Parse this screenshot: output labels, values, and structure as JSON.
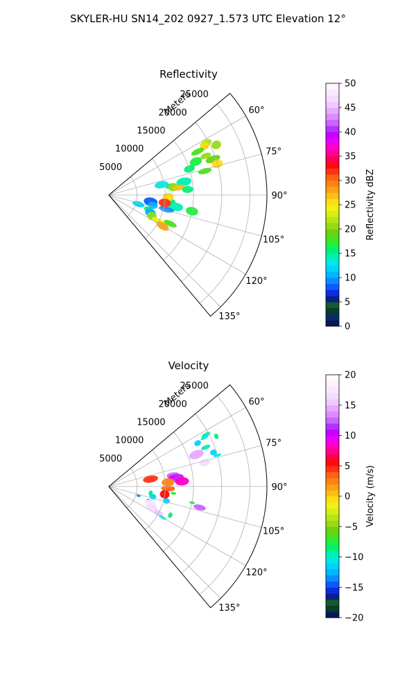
{
  "figure_title": "SKYLER-HU  SN14_202  0927_1.573 UTC Elevation 12°",
  "chart_data": [
    {
      "type": "polar-sector",
      "title": "Reflectivity",
      "radial_axis_label": "Meters",
      "radial_ticks": [
        "5000",
        "10000",
        "15000",
        "20000",
        "25000"
      ],
      "radial_tick_values": [
        5000,
        10000,
        15000,
        20000,
        25000
      ],
      "rlim": [
        0,
        28000
      ],
      "theta_range_deg": [
        50,
        140
      ],
      "angle_ticks": [
        "60°",
        "75°",
        "90°",
        "105°",
        "120°",
        "135°"
      ],
      "angle_tick_values": [
        60,
        75,
        90,
        105,
        120,
        135
      ],
      "grid": true,
      "colorbar": {
        "label": "Reflectivity dBZ",
        "range": [
          0,
          50
        ],
        "ticks": [
          "0",
          "5",
          "10",
          "15",
          "20",
          "25",
          "30",
          "35",
          "40",
          "45",
          "50"
        ],
        "tick_values": [
          0,
          5,
          10,
          15,
          20,
          25,
          30,
          35,
          40,
          45,
          50
        ],
        "colors": [
          "#061a55",
          "#0a2c66",
          "#0b3d2b",
          "#145a2c",
          "#0a1e8c",
          "#0b2ee0",
          "#0a5cff",
          "#0a8cff",
          "#00b4ff",
          "#00d2ff",
          "#00e8e8",
          "#00f0b4",
          "#00f078",
          "#1ef03c",
          "#4be01e",
          "#6ed214",
          "#96dc14",
          "#b4e614",
          "#d2f014",
          "#f0f014",
          "#ffdc14",
          "#ffbe14",
          "#ffa014",
          "#ff8214",
          "#ff6414",
          "#ff3214",
          "#ff0a0a",
          "#ff0050",
          "#ff0096",
          "#ff00c8",
          "#e600ff",
          "#c800ff",
          "#b432ff",
          "#c864ff",
          "#dc8cff",
          "#e6aaff",
          "#f0c8ff",
          "#f5dcff",
          "#fae8ff",
          "#fff4ff"
        ]
      },
      "echoes": [
        {
          "theta": 62,
          "r": 19500,
          "value": 22
        },
        {
          "theta": 63,
          "r": 19000,
          "value": 25
        },
        {
          "theta": 65,
          "r": 21000,
          "value": 20
        },
        {
          "theta": 64,
          "r": 17500,
          "value": 18
        },
        {
          "theta": 68,
          "r": 18500,
          "value": 21
        },
        {
          "theta": 69,
          "r": 16500,
          "value": 17
        },
        {
          "theta": 71,
          "r": 19500,
          "value": 19
        },
        {
          "theta": 72,
          "r": 15000,
          "value": 16
        },
        {
          "theta": 74,
          "r": 20000,
          "value": 26
        },
        {
          "theta": 76,
          "r": 17500,
          "value": 18
        },
        {
          "theta": 80,
          "r": 13500,
          "value": 14
        },
        {
          "theta": 82,
          "r": 11000,
          "value": 15
        },
        {
          "theta": 83,
          "r": 11500,
          "value": 20
        },
        {
          "theta": 84,
          "r": 12500,
          "value": 27
        },
        {
          "theta": 79,
          "r": 9500,
          "value": 13
        },
        {
          "theta": 86,
          "r": 14000,
          "value": 16
        },
        {
          "theta": 99,
          "r": 7500,
          "value": 8
        },
        {
          "theta": 103,
          "r": 8000,
          "value": 10
        },
        {
          "theta": 107,
          "r": 5500,
          "value": 12
        },
        {
          "theta": 110,
          "r": 7500,
          "value": 15
        },
        {
          "theta": 113,
          "r": 8000,
          "value": 11
        },
        {
          "theta": 116,
          "r": 8500,
          "value": 20
        },
        {
          "theta": 118,
          "r": 10000,
          "value": 24
        },
        {
          "theta": 120,
          "r": 11000,
          "value": 28
        },
        {
          "theta": 115,
          "r": 12000,
          "value": 18
        },
        {
          "theta": 96,
          "r": 11000,
          "value": 15
        },
        {
          "theta": 100,
          "r": 12000,
          "value": 14
        },
        {
          "theta": 104,
          "r": 10500,
          "value": 9
        },
        {
          "theta": 92,
          "r": 10500,
          "value": 26
        },
        {
          "theta": 98,
          "r": 10000,
          "value": 32
        },
        {
          "theta": 101,
          "r": 15000,
          "value": 17
        }
      ]
    },
    {
      "type": "polar-sector",
      "title": "Velocity",
      "radial_axis_label": "Meters",
      "radial_ticks": [
        "5000",
        "10000",
        "15000",
        "20000",
        "25000"
      ],
      "radial_tick_values": [
        5000,
        10000,
        15000,
        20000,
        25000
      ],
      "rlim": [
        0,
        28000
      ],
      "theta_range_deg": [
        50,
        140
      ],
      "angle_ticks": [
        "60°",
        "75°",
        "90°",
        "105°",
        "120°",
        "135°"
      ],
      "angle_tick_values": [
        60,
        75,
        90,
        105,
        120,
        135
      ],
      "grid": true,
      "colorbar": {
        "label": "Velocity (m/s)",
        "range": [
          -20,
          20
        ],
        "ticks": [
          "−20",
          "−15",
          "−10",
          "−5",
          "0",
          "5",
          "10",
          "15",
          "20"
        ],
        "tick_values": [
          -20,
          -15,
          -10,
          -5,
          0,
          5,
          10,
          15,
          20
        ],
        "colors": [
          "#061a55",
          "#0b3d2b",
          "#145a2c",
          "#0a1e8c",
          "#0b2ee0",
          "#0a5cff",
          "#0a8cff",
          "#00b4ff",
          "#00d2ff",
          "#00e8e8",
          "#00f0b4",
          "#00f078",
          "#1ef03c",
          "#4be01e",
          "#6ed214",
          "#96dc14",
          "#b4e614",
          "#d2f014",
          "#f0f014",
          "#ffdc14",
          "#ffbe14",
          "#ffa014",
          "#ff8214",
          "#ff6414",
          "#ff3214",
          "#ff0a0a",
          "#ff0050",
          "#ff0096",
          "#ff00c8",
          "#e600ff",
          "#c800ff",
          "#b432ff",
          "#c864ff",
          "#dc8cff",
          "#e6aaff",
          "#f0c8ff",
          "#f5dcff",
          "#fae8ff",
          "#fff0ff",
          "#fff8ff"
        ]
      },
      "echoes": [
        {
          "theta": 62,
          "r": 19500,
          "value": -10
        },
        {
          "theta": 63,
          "r": 19000,
          "value": -11
        },
        {
          "theta": 65,
          "r": 21000,
          "value": -9
        },
        {
          "theta": 64,
          "r": 17500,
          "value": -12
        },
        {
          "theta": 68,
          "r": 18500,
          "value": -10
        },
        {
          "theta": 70,
          "r": 16500,
          "value": 14
        },
        {
          "theta": 72,
          "r": 19500,
          "value": -12
        },
        {
          "theta": 74,
          "r": 20000,
          "value": -11
        },
        {
          "theta": 76,
          "r": 17500,
          "value": 16
        },
        {
          "theta": 80,
          "r": 11500,
          "value": 12
        },
        {
          "theta": 82,
          "r": 12000,
          "value": 9
        },
        {
          "theta": 84,
          "r": 12500,
          "value": 11
        },
        {
          "theta": 86,
          "r": 10500,
          "value": 2
        },
        {
          "theta": 86,
          "r": 13000,
          "value": 8
        },
        {
          "theta": 80,
          "r": 7500,
          "value": 4
        },
        {
          "theta": 96,
          "r": 11500,
          "value": -8
        },
        {
          "theta": 99,
          "r": 7500,
          "value": -9
        },
        {
          "theta": 103,
          "r": 8000,
          "value": -12
        },
        {
          "theta": 107,
          "r": 5500,
          "value": -14
        },
        {
          "theta": 110,
          "r": 7500,
          "value": -13
        },
        {
          "theta": 113,
          "r": 8000,
          "value": 17
        },
        {
          "theta": 116,
          "r": 8500,
          "value": 16
        },
        {
          "theta": 118,
          "r": 10000,
          "value": 15
        },
        {
          "theta": 120,
          "r": 11000,
          "value": -11
        },
        {
          "theta": 115,
          "r": 12000,
          "value": -9
        },
        {
          "theta": 104,
          "r": 10500,
          "value": -12
        },
        {
          "theta": 92,
          "r": 10500,
          "value": 3
        },
        {
          "theta": 98,
          "r": 10000,
          "value": 5
        },
        {
          "theta": 101,
          "r": 15000,
          "value": -8
        },
        {
          "theta": 103,
          "r": 16500,
          "value": 12
        }
      ]
    }
  ]
}
